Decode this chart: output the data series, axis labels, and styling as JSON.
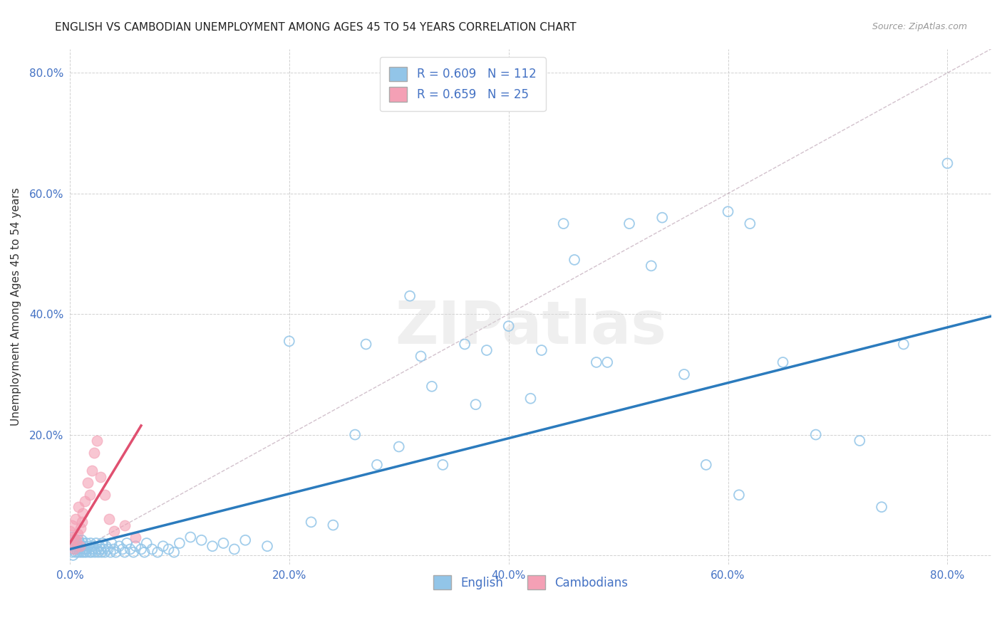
{
  "title": "ENGLISH VS CAMBODIAN UNEMPLOYMENT AMONG AGES 45 TO 54 YEARS CORRELATION CHART",
  "source": "Source: ZipAtlas.com",
  "ylabel": "Unemployment Among Ages 45 to 54 years",
  "xlim": [
    0.0,
    0.84
  ],
  "ylim": [
    -0.015,
    0.84
  ],
  "english_R": 0.609,
  "english_N": 112,
  "cambodian_R": 0.659,
  "cambodian_N": 25,
  "english_color": "#92C5E8",
  "cambodian_color": "#F4A0B5",
  "english_line_color": "#2B7BBD",
  "cambodian_line_color": "#E05070",
  "diagonal_color": "#C8B8C8",
  "background_color": "#FFFFFF",
  "grid_color": "#CCCCCC",
  "english_x": [
    0.0,
    0.001,
    0.001,
    0.002,
    0.002,
    0.003,
    0.003,
    0.004,
    0.004,
    0.005,
    0.005,
    0.006,
    0.006,
    0.007,
    0.007,
    0.008,
    0.008,
    0.009,
    0.009,
    0.01,
    0.01,
    0.011,
    0.011,
    0.012,
    0.012,
    0.013,
    0.013,
    0.014,
    0.015,
    0.015,
    0.016,
    0.017,
    0.018,
    0.019,
    0.02,
    0.02,
    0.021,
    0.022,
    0.023,
    0.024,
    0.025,
    0.026,
    0.027,
    0.028,
    0.029,
    0.03,
    0.031,
    0.032,
    0.033,
    0.035,
    0.037,
    0.038,
    0.04,
    0.042,
    0.045,
    0.048,
    0.05,
    0.052,
    0.055,
    0.058,
    0.06,
    0.065,
    0.068,
    0.07,
    0.075,
    0.08,
    0.085,
    0.09,
    0.095,
    0.1,
    0.11,
    0.12,
    0.13,
    0.14,
    0.15,
    0.16,
    0.18,
    0.2,
    0.22,
    0.24,
    0.26,
    0.27,
    0.28,
    0.3,
    0.31,
    0.32,
    0.33,
    0.34,
    0.36,
    0.37,
    0.38,
    0.4,
    0.42,
    0.43,
    0.45,
    0.46,
    0.48,
    0.49,
    0.51,
    0.53,
    0.54,
    0.56,
    0.58,
    0.6,
    0.61,
    0.62,
    0.65,
    0.68,
    0.72,
    0.74,
    0.76,
    0.8
  ],
  "english_y": [
    0.02,
    0.01,
    0.025,
    0.005,
    0.03,
    0.015,
    0.0,
    0.02,
    0.01,
    0.005,
    0.025,
    0.01,
    0.02,
    0.005,
    0.015,
    0.01,
    0.025,
    0.005,
    0.02,
    0.01,
    0.015,
    0.005,
    0.025,
    0.01,
    0.02,
    0.005,
    0.015,
    0.01,
    0.02,
    0.005,
    0.01,
    0.015,
    0.005,
    0.02,
    0.01,
    0.005,
    0.015,
    0.01,
    0.005,
    0.02,
    0.01,
    0.005,
    0.015,
    0.01,
    0.005,
    0.02,
    0.01,
    0.005,
    0.015,
    0.01,
    0.005,
    0.02,
    0.01,
    0.005,
    0.015,
    0.01,
    0.005,
    0.02,
    0.01,
    0.005,
    0.015,
    0.01,
    0.005,
    0.02,
    0.01,
    0.005,
    0.015,
    0.01,
    0.005,
    0.02,
    0.03,
    0.025,
    0.015,
    0.02,
    0.01,
    0.025,
    0.015,
    0.355,
    0.055,
    0.05,
    0.2,
    0.35,
    0.15,
    0.18,
    0.43,
    0.33,
    0.28,
    0.15,
    0.35,
    0.25,
    0.34,
    0.38,
    0.26,
    0.34,
    0.55,
    0.49,
    0.32,
    0.32,
    0.55,
    0.48,
    0.56,
    0.3,
    0.15,
    0.57,
    0.1,
    0.55,
    0.32,
    0.2,
    0.19,
    0.08,
    0.35,
    0.65
  ],
  "cambodian_x": [
    0.0,
    0.001,
    0.002,
    0.003,
    0.004,
    0.005,
    0.006,
    0.007,
    0.008,
    0.009,
    0.01,
    0.011,
    0.012,
    0.014,
    0.016,
    0.018,
    0.02,
    0.022,
    0.025,
    0.028,
    0.032,
    0.036,
    0.04,
    0.05,
    0.06
  ],
  "cambodian_y": [
    0.04,
    0.02,
    0.05,
    0.03,
    0.01,
    0.06,
    0.025,
    0.035,
    0.08,
    0.015,
    0.045,
    0.055,
    0.07,
    0.09,
    0.12,
    0.1,
    0.14,
    0.17,
    0.19,
    0.13,
    0.1,
    0.06,
    0.04,
    0.05,
    0.03
  ],
  "title_fontsize": 11,
  "axis_label_fontsize": 11,
  "tick_fontsize": 11,
  "legend_fontsize": 12
}
